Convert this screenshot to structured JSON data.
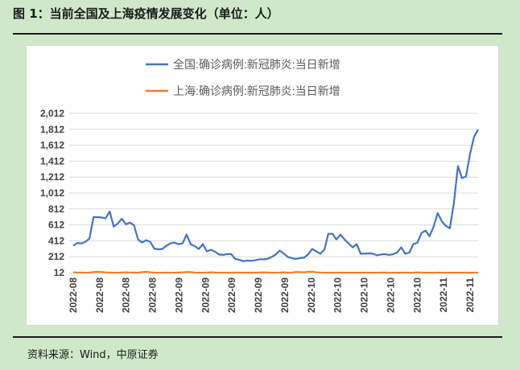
{
  "header": {
    "title": "图 1：当前全国及上海疫情发展变化（单位：人）"
  },
  "footer": {
    "source": "资料来源：Wind，中原证券"
  },
  "chart_data": {
    "type": "line",
    "title": "",
    "xlabel": "",
    "ylabel": "",
    "ylim": [
      12,
      2012
    ],
    "y_ticks": [
      "2,012",
      "1,812",
      "1,612",
      "1,412",
      "1,212",
      "1,012",
      "812",
      "612",
      "412",
      "212",
      "12"
    ],
    "y_tick_values": [
      2012,
      1812,
      1612,
      1412,
      1212,
      1012,
      812,
      612,
      412,
      212,
      12
    ],
    "x_tick_labels": [
      "2022-08",
      "2022-08",
      "2022-08",
      "2022-08",
      "2022-09",
      "2022-09",
      "2022-09",
      "2022-09",
      "2022-09",
      "2022-10",
      "2022-10",
      "2022-10",
      "2022-10",
      "2022-10",
      "2022-11",
      "2022-11"
    ],
    "grid": "horizontal",
    "legend_position": "top",
    "series": [
      {
        "name": "全国:确诊病例:新冠肺炎:当日新增",
        "color": "#4472c4",
        "values": [
          350,
          385,
          380,
          400,
          440,
          710,
          710,
          705,
          695,
          780,
          590,
          630,
          690,
          620,
          640,
          610,
          430,
          390,
          420,
          400,
          315,
          305,
          310,
          350,
          380,
          390,
          370,
          380,
          490,
          370,
          345,
          310,
          370,
          280,
          300,
          275,
          240,
          235,
          245,
          245,
          185,
          175,
          155,
          165,
          160,
          170,
          180,
          180,
          185,
          210,
          240,
          290,
          250,
          210,
          195,
          185,
          195,
          200,
          240,
          310,
          280,
          250,
          300,
          500,
          500,
          430,
          490,
          430,
          380,
          330,
          370,
          250,
          250,
          255,
          250,
          230,
          240,
          245,
          235,
          245,
          265,
          330,
          250,
          265,
          370,
          390,
          510,
          540,
          470,
          590,
          760,
          660,
          600,
          570,
          880,
          1350,
          1200,
          1220,
          1500,
          1720,
          1810
        ]
      },
      {
        "name": "上海:确诊病例:新冠肺炎:当日新增",
        "color": "#ed7d31",
        "values": [
          16,
          14,
          13,
          12,
          12,
          18,
          22,
          20,
          15,
          13,
          12,
          12,
          14,
          16,
          14,
          13,
          12,
          18,
          22,
          16,
          13,
          12,
          12,
          14,
          12,
          12,
          14,
          16,
          20,
          18,
          14,
          12,
          12,
          14,
          16,
          14,
          12,
          12,
          12,
          12,
          14,
          13,
          12,
          12,
          12,
          12,
          14,
          16,
          14,
          12,
          12,
          14,
          16,
          12,
          14,
          20,
          18,
          16,
          22,
          24,
          16,
          14,
          12,
          12,
          12,
          12,
          14,
          12,
          12,
          12,
          12,
          12,
          14,
          12,
          12,
          12,
          14,
          13,
          12,
          12,
          12,
          12,
          14,
          12,
          12,
          16,
          14,
          12,
          12,
          12,
          14,
          12,
          12,
          12,
          12,
          12,
          12,
          13,
          12,
          12,
          12
        ]
      }
    ]
  }
}
